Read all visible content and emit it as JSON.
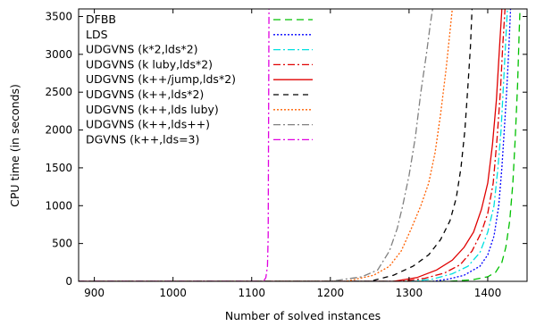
{
  "chart_data": {
    "type": "line",
    "xlabel": "Number of solved instances",
    "ylabel": "CPU time (in seconds)",
    "xlim": [
      880,
      1450
    ],
    "ylim": [
      0,
      3600
    ],
    "x_ticks": [
      900,
      1000,
      1100,
      1200,
      1300,
      1400
    ],
    "y_ticks": [
      0,
      500,
      1000,
      1500,
      2000,
      2500,
      3000,
      3500
    ],
    "grid": false,
    "legend_position": "top-left",
    "series": [
      {
        "name": "DFBB",
        "color": "#00c000",
        "dash": "8,5",
        "points": [
          [
            880,
            0
          ],
          [
            1350,
            0
          ],
          [
            1380,
            20
          ],
          [
            1400,
            60
          ],
          [
            1410,
            120
          ],
          [
            1418,
            250
          ],
          [
            1423,
            450
          ],
          [
            1428,
            800
          ],
          [
            1432,
            1300
          ],
          [
            1435,
            1900
          ],
          [
            1438,
            2600
          ],
          [
            1440,
            3300
          ],
          [
            1441,
            3600
          ]
        ]
      },
      {
        "name": "LDS",
        "color": "#0000ff",
        "dash": "2,2",
        "points": [
          [
            880,
            0
          ],
          [
            1330,
            0
          ],
          [
            1350,
            30
          ],
          [
            1370,
            80
          ],
          [
            1390,
            200
          ],
          [
            1400,
            350
          ],
          [
            1408,
            600
          ],
          [
            1414,
            1000
          ],
          [
            1418,
            1500
          ],
          [
            1421,
            2000
          ],
          [
            1424,
            2500
          ],
          [
            1427,
            3100
          ],
          [
            1429,
            3600
          ]
        ]
      },
      {
        "name": "UDGVNS (k*2,lds*2)",
        "color": "#00e0e0",
        "dash": "8,3,2,3",
        "points": [
          [
            880,
            0
          ],
          [
            1300,
            0
          ],
          [
            1330,
            30
          ],
          [
            1355,
            100
          ],
          [
            1375,
            200
          ],
          [
            1390,
            380
          ],
          [
            1400,
            650
          ],
          [
            1408,
            1000
          ],
          [
            1413,
            1500
          ],
          [
            1417,
            2000
          ],
          [
            1420,
            2600
          ],
          [
            1423,
            3200
          ],
          [
            1425,
            3600
          ]
        ]
      },
      {
        "name": "UDGVNS (k luby,lds*2)",
        "color": "#e00000",
        "dash": "8,3,2,3",
        "points": [
          [
            880,
            0
          ],
          [
            1290,
            0
          ],
          [
            1320,
            40
          ],
          [
            1345,
            110
          ],
          [
            1365,
            220
          ],
          [
            1380,
            400
          ],
          [
            1392,
            650
          ],
          [
            1400,
            900
          ],
          [
            1407,
            1300
          ],
          [
            1412,
            1900
          ],
          [
            1416,
            2500
          ],
          [
            1419,
            3100
          ],
          [
            1422,
            3600
          ]
        ]
      },
      {
        "name": "UDGVNS (k++/jump,lds*2)",
        "color": "#e00000",
        "dash": "",
        "points": [
          [
            880,
            0
          ],
          [
            1280,
            0
          ],
          [
            1310,
            50
          ],
          [
            1335,
            150
          ],
          [
            1355,
            280
          ],
          [
            1370,
            450
          ],
          [
            1382,
            650
          ],
          [
            1392,
            950
          ],
          [
            1400,
            1300
          ],
          [
            1406,
            1800
          ],
          [
            1411,
            2400
          ],
          [
            1415,
            3100
          ],
          [
            1418,
            3600
          ]
        ]
      },
      {
        "name": "UDGVNS (k++,lds*2)",
        "color": "#000000",
        "dash": "6,5",
        "points": [
          [
            880,
            0
          ],
          [
            1250,
            0
          ],
          [
            1280,
            80
          ],
          [
            1305,
            200
          ],
          [
            1325,
            350
          ],
          [
            1340,
            550
          ],
          [
            1352,
            800
          ],
          [
            1360,
            1100
          ],
          [
            1366,
            1500
          ],
          [
            1371,
            2000
          ],
          [
            1375,
            2600
          ],
          [
            1378,
            3100
          ],
          [
            1380,
            3600
          ]
        ]
      },
      {
        "name": "UDGVNS (k++,lds luby)",
        "color": "#ff6000",
        "dash": "2,2",
        "points": [
          [
            880,
            0
          ],
          [
            1220,
            0
          ],
          [
            1255,
            80
          ],
          [
            1275,
            200
          ],
          [
            1290,
            400
          ],
          [
            1303,
            700
          ],
          [
            1315,
            1000
          ],
          [
            1325,
            1300
          ],
          [
            1333,
            1700
          ],
          [
            1340,
            2200
          ],
          [
            1347,
            2800
          ],
          [
            1352,
            3300
          ],
          [
            1355,
            3600
          ]
        ]
      },
      {
        "name": "UDGVNS (k++,lds++)",
        "color": "#808080",
        "dash": "8,3,2,3",
        "points": [
          [
            880,
            0
          ],
          [
            1200,
            0
          ],
          [
            1240,
            60
          ],
          [
            1260,
            150
          ],
          [
            1275,
            400
          ],
          [
            1285,
            700
          ],
          [
            1292,
            1000
          ],
          [
            1300,
            1400
          ],
          [
            1308,
            1900
          ],
          [
            1315,
            2500
          ],
          [
            1322,
            3000
          ],
          [
            1327,
            3400
          ],
          [
            1330,
            3600
          ]
        ]
      },
      {
        "name": "DGVNS (k++,lds=3)",
        "color": "#e000e0",
        "dash": "8,3,2,3",
        "points": [
          [
            880,
            0
          ],
          [
            1115,
            0
          ],
          [
            1118,
            50
          ],
          [
            1120,
            200
          ],
          [
            1121,
            600
          ],
          [
            1122,
            3600
          ]
        ]
      }
    ]
  }
}
